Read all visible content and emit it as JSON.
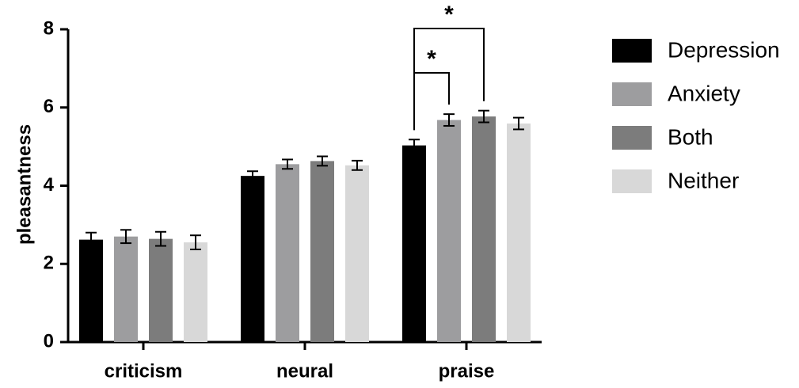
{
  "chart_data": {
    "type": "bar",
    "title": "",
    "xlabel": "",
    "ylabel": "pleasantness",
    "ylim": [
      0,
      8
    ],
    "yticks": [
      0,
      2,
      4,
      6,
      8
    ],
    "grid": false,
    "legend_position": "right",
    "categories": [
      "criticism",
      "neural",
      "praise"
    ],
    "series": [
      {
        "name": "Depression",
        "color": "#000000",
        "values": [
          2.62,
          4.25,
          5.03
        ],
        "errors": [
          0.18,
          0.12,
          0.15
        ]
      },
      {
        "name": "Anxiety",
        "color": "#9d9d9f",
        "values": [
          2.7,
          4.55,
          5.68
        ],
        "errors": [
          0.17,
          0.12,
          0.15
        ]
      },
      {
        "name": "Both",
        "color": "#7c7c7c",
        "values": [
          2.64,
          4.63,
          5.77
        ],
        "errors": [
          0.18,
          0.12,
          0.15
        ]
      },
      {
        "name": "Neither",
        "color": "#d8d8d8",
        "values": [
          2.55,
          4.52,
          5.59
        ],
        "errors": [
          0.18,
          0.12,
          0.15
        ]
      }
    ],
    "annotations": [
      {
        "category": "praise",
        "from_series": 0,
        "to_series": 1,
        "label": "*"
      },
      {
        "category": "praise",
        "from_series": 0,
        "to_series": 2,
        "label": "*"
      }
    ]
  }
}
